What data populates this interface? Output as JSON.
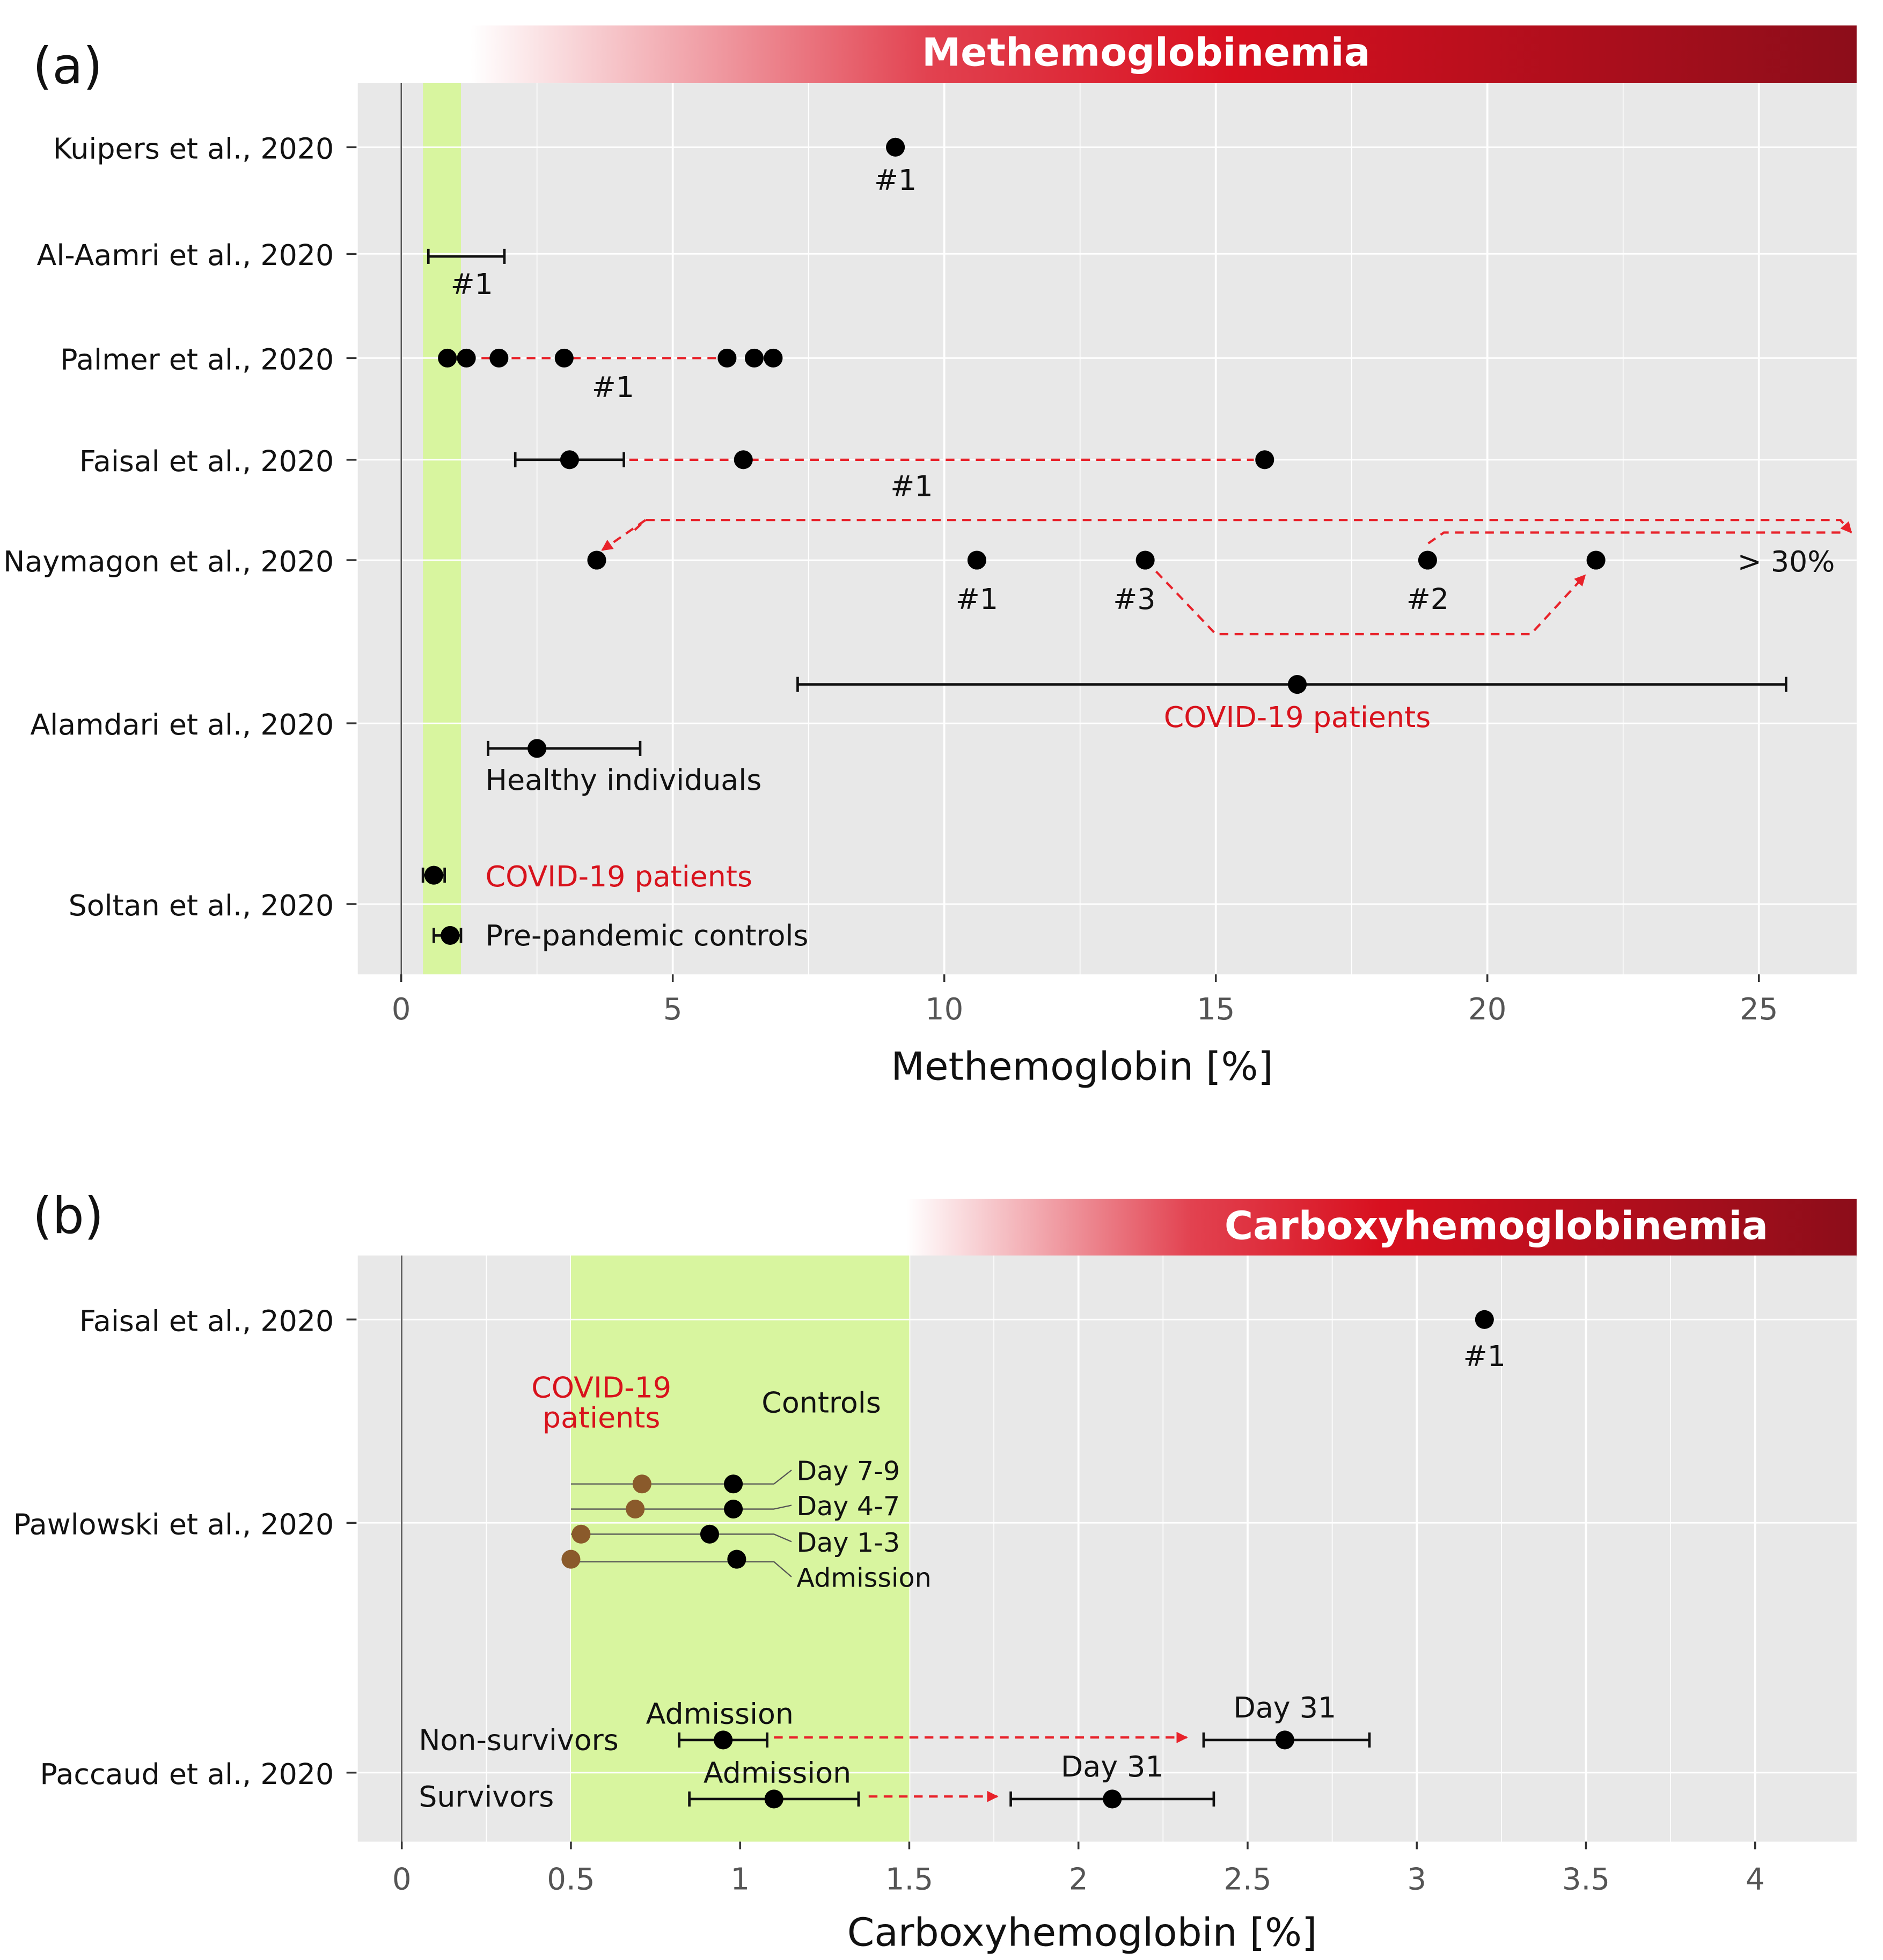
{
  "colors": {
    "panel_bg": "#e8e8e8",
    "grid": "#ffffff",
    "normal_band": "#d8f59f",
    "point": "#000000",
    "point_brown": "#8a5a2b",
    "arrow_red": "#e8222a",
    "text": "#111111",
    "text_red": "#d8121c",
    "banner_dark": "#8c0d1a",
    "banner_mid": "#d8101f"
  },
  "chart_data": [
    {
      "type": "scatter",
      "panel_label": "(a)",
      "banner": "Methemoglobinemia",
      "xlabel": "Methemoglobin [%]",
      "xlim": [
        -0.8,
        26.8
      ],
      "xticks": [
        0,
        5,
        10,
        15,
        20,
        25
      ],
      "normal_range": [
        0.4,
        1.1
      ],
      "grid": "major lines at ticks, minor between",
      "studies": [
        {
          "label": "Kuipers et al., 2020",
          "y": 117
        },
        {
          "label": "Al-Aamri et al., 2020",
          "y": 202
        },
        {
          "label": "Palmer et al., 2020",
          "y": 285
        },
        {
          "label": "Faisal et al., 2020",
          "y": 366
        },
        {
          "label": "Naymagon et al., 2020",
          "y": 446
        },
        {
          "label": "Alamdari et al., 2020",
          "y": 576
        },
        {
          "label": "Soltan et al., 2020",
          "y": 720
        }
      ],
      "points": [
        {
          "study": "Kuipers et al., 2020",
          "x": 9.1,
          "y": 117
        },
        {
          "study": "Palmer et al., 2020",
          "x": 0.85,
          "y": 285
        },
        {
          "study": "Palmer et al., 2020",
          "x": 1.2,
          "y": 285
        },
        {
          "study": "Palmer et al., 2020",
          "x": 1.8,
          "y": 285
        },
        {
          "study": "Palmer et al., 2020",
          "x": 3.0,
          "y": 285
        },
        {
          "study": "Palmer et al., 2020",
          "x": 6.0,
          "y": 285
        },
        {
          "study": "Palmer et al., 2020",
          "x": 6.5,
          "y": 285
        },
        {
          "study": "Palmer et al., 2020",
          "x": 6.85,
          "y": 285
        },
        {
          "study": "Faisal et al., 2020",
          "x": 3.1,
          "y": 366
        },
        {
          "study": "Faisal et al., 2020",
          "x": 6.3,
          "y": 366
        },
        {
          "study": "Faisal et al., 2020",
          "x": 15.9,
          "y": 366
        },
        {
          "study": "Naymagon et al., 2020",
          "x": 3.6,
          "y": 446
        },
        {
          "study": "Naymagon et al., 2020",
          "x": 10.6,
          "y": 446
        },
        {
          "study": "Naymagon et al., 2020",
          "x": 13.7,
          "y": 446
        },
        {
          "study": "Naymagon et al., 2020",
          "x": 18.9,
          "y": 446
        },
        {
          "study": "Naymagon et al., 2020",
          "x": 22.0,
          "y": 446
        },
        {
          "study": "Alamdari et al., 2020 (COVID-19 patients)",
          "x": 16.5,
          "y": 545
        },
        {
          "study": "Alamdari et al., 2020 (Healthy individuals)",
          "x": 2.5,
          "y": 596
        },
        {
          "study": "Soltan et al., 2020 (COVID-19 patients)",
          "x": 0.6,
          "y": 697
        },
        {
          "study": "Soltan et al., 2020 (Pre-pandemic controls)",
          "x": 0.9,
          "y": 745
        }
      ],
      "ranges": [
        {
          "study": "Al-Aamri et al., 2020",
          "low": 0.5,
          "high": 1.9,
          "y": 204
        },
        {
          "study": "Faisal et al., 2020",
          "low": 2.1,
          "high": 4.1,
          "y": 366
        },
        {
          "study": "Alamdari et al., 2020 (COVID-19 patients)",
          "low": 7.3,
          "high": 25.5,
          "y": 545
        },
        {
          "study": "Alamdari et al., 2020 (Healthy individuals)",
          "low": 1.6,
          "high": 4.4,
          "y": 596
        },
        {
          "study": "Soltan et al., 2020 (COVID-19 patients)",
          "low": 0.4,
          "high": 0.8,
          "y": 697
        },
        {
          "study": "Soltan et al., 2020 (Pre-pandemic controls)",
          "low": 0.6,
          "high": 1.1,
          "y": 745
        }
      ],
      "arrows": [
        {
          "path": [
            [
              1.2,
              285
            ],
            [
              6.0,
              285
            ]
          ],
          "head": false
        },
        {
          "path": [
            [
              4.2,
              366
            ],
            [
              15.7,
              366
            ]
          ],
          "head": false
        },
        {
          "path": [
            [
              4.3,
              422
            ],
            [
              4.5,
              414
            ],
            [
              26.5,
              414
            ],
            [
              26.7,
              424
            ]
          ],
          "head": true
        },
        {
          "path": [
            [
              26.5,
              424
            ],
            [
              19.2,
              424
            ],
            [
              18.9,
              433
            ]
          ],
          "head": false
        },
        {
          "path": [
            [
              4.5,
              414
            ],
            [
              3.7,
              438
            ]
          ],
          "head": true
        },
        {
          "path": [
            [
              13.9,
              455
            ],
            [
              15.0,
              505
            ],
            [
              20.8,
              505
            ],
            [
              21.8,
              458
            ]
          ],
          "head": true
        }
      ],
      "annotations": [
        {
          "text": "#1",
          "x": 9.1,
          "y": 143,
          "color": "text",
          "anchor": "middle"
        },
        {
          "text": "#1",
          "x": 1.3,
          "y": 226,
          "color": "text",
          "anchor": "middle"
        },
        {
          "text": "#1",
          "x": 3.9,
          "y": 308,
          "color": "text",
          "anchor": "middle"
        },
        {
          "text": "#1",
          "x": 9.4,
          "y": 387,
          "color": "text",
          "anchor": "middle"
        },
        {
          "text": "#1",
          "x": 10.6,
          "y": 477,
          "color": "text",
          "anchor": "middle"
        },
        {
          "text": "#3",
          "x": 13.5,
          "y": 477,
          "color": "text",
          "anchor": "middle"
        },
        {
          "text": "#2",
          "x": 18.9,
          "y": 477,
          "color": "text",
          "anchor": "middle"
        },
        {
          "text": "> 30%",
          "x": 26.4,
          "y": 447,
          "color": "text",
          "anchor": "end"
        },
        {
          "text": "COVID-19 patients",
          "x": 16.5,
          "y": 571,
          "color": "text_red",
          "anchor": "middle"
        },
        {
          "text": "Healthy individuals",
          "x": 1.55,
          "y": 621,
          "color": "text",
          "anchor": "start"
        },
        {
          "text": "COVID-19 patients",
          "x": 1.55,
          "y": 698,
          "color": "text_red",
          "anchor": "start"
        },
        {
          "text": "Pre-pandemic controls",
          "x": 1.55,
          "y": 745,
          "color": "text",
          "anchor": "start"
        }
      ]
    },
    {
      "type": "scatter",
      "panel_label": "(b)",
      "banner": "Carboxyhemoglobinemia",
      "xlabel": "Carboxyhemoglobin [%]",
      "xlim": [
        -0.13,
        4.3
      ],
      "xticks": [
        0,
        0.5,
        1,
        1.5,
        2,
        2.5,
        3,
        3.5,
        4
      ],
      "xtick_labels": [
        "0",
        "0.5",
        "1",
        "1.5",
        "2",
        "2.5",
        "3",
        "3.5",
        "4"
      ],
      "normal_range": [
        0.5,
        1.5
      ],
      "grid": "major lines at ticks, minor between",
      "studies": [
        {
          "label": "Faisal et al., 2020",
          "y": 1051
        },
        {
          "label": "Pawlowski et al., 2020",
          "y": 1213
        },
        {
          "label": "Paccaud et al., 2020",
          "y": 1412
        }
      ],
      "points": [
        {
          "study": "Faisal et al., 2020",
          "x": 3.2,
          "y": 1051,
          "group": "patient"
        },
        {
          "study": "Pawlowski et al., 2020 Day 7-9 COVID-19",
          "x": 0.71,
          "y": 1182,
          "group": "covid"
        },
        {
          "study": "Pawlowski et al., 2020 Day 7-9 Controls",
          "x": 0.98,
          "y": 1182,
          "group": "control"
        },
        {
          "study": "Pawlowski et al., 2020 Day 4-7 COVID-19",
          "x": 0.69,
          "y": 1202,
          "group": "covid"
        },
        {
          "study": "Pawlowski et al., 2020 Day 4-7 Controls",
          "x": 0.98,
          "y": 1202,
          "group": "control"
        },
        {
          "study": "Pawlowski et al., 2020 Day 1-3 COVID-19",
          "x": 0.53,
          "y": 1222,
          "group": "covid"
        },
        {
          "study": "Pawlowski et al., 2020 Day 1-3 Controls",
          "x": 0.91,
          "y": 1222,
          "group": "control"
        },
        {
          "study": "Pawlowski et al., 2020 Admission COVID-19",
          "x": 0.5,
          "y": 1242,
          "group": "covid"
        },
        {
          "study": "Pawlowski et al., 2020 Admission Controls",
          "x": 0.99,
          "y": 1242,
          "group": "control"
        },
        {
          "study": "Paccaud et al., 2020 Non-survivors Admission",
          "x": 0.95,
          "y": 1386,
          "group": "patient"
        },
        {
          "study": "Paccaud et al., 2020 Non-survivors Day 31",
          "x": 2.61,
          "y": 1386,
          "group": "patient"
        },
        {
          "study": "Paccaud et al., 2020 Survivors Admission",
          "x": 1.1,
          "y": 1433,
          "group": "patient"
        },
        {
          "study": "Paccaud et al., 2020 Survivors Day 31",
          "x": 2.1,
          "y": 1433,
          "group": "patient"
        }
      ],
      "ranges": [
        {
          "study": "Paccaud Non-survivors Admission",
          "low": 0.82,
          "high": 1.08,
          "y": 1386
        },
        {
          "study": "Paccaud Non-survivors Day 31",
          "low": 2.37,
          "high": 2.86,
          "y": 1386
        },
        {
          "study": "Paccaud Survivors Admission",
          "low": 0.85,
          "high": 1.35,
          "y": 1433
        },
        {
          "study": "Paccaud Survivors Day 31",
          "low": 1.8,
          "high": 2.4,
          "y": 1433
        }
      ],
      "connectors": [
        {
          "label": "Day 7-9",
          "y": 1182,
          "x_from": 0.5,
          "x_to": 1.1,
          "label_y": 1171
        },
        {
          "label": "Day 4-7",
          "y": 1202,
          "x_from": 0.5,
          "x_to": 1.1,
          "label_y": 1199
        },
        {
          "label": "Day 1-3",
          "y": 1222,
          "x_from": 0.5,
          "x_to": 1.1,
          "label_y": 1228
        },
        {
          "label": "Admission",
          "y": 1244,
          "x_from": 0.5,
          "x_to": 1.1,
          "label_y": 1256
        }
      ],
      "arrows": [
        {
          "path": [
            [
              1.1,
              1384
            ],
            [
              2.32,
              1384
            ]
          ],
          "head": true
        },
        {
          "path": [
            [
              1.38,
              1431
            ],
            [
              1.76,
              1431
            ]
          ],
          "head": true
        }
      ],
      "annotations": [
        {
          "text": "#1",
          "x": 3.2,
          "y": 1080,
          "color": "text",
          "anchor": "middle"
        },
        {
          "text": "COVID-19",
          "x": 0.59,
          "y": 1105,
          "color": "text_red",
          "anchor": "middle"
        },
        {
          "text": "patients",
          "x": 0.59,
          "y": 1129,
          "color": "text_red",
          "anchor": "middle"
        },
        {
          "text": "Controls",
          "x": 1.24,
          "y": 1117,
          "color": "text",
          "anchor": "middle"
        },
        {
          "text": "Non-survivors",
          "x": 0.05,
          "y": 1386,
          "color": "text",
          "anchor": "start"
        },
        {
          "text": "Survivors",
          "x": 0.05,
          "y": 1431,
          "color": "text",
          "anchor": "start"
        },
        {
          "text": "Admission",
          "x": 0.94,
          "y": 1365,
          "color": "text",
          "anchor": "middle"
        },
        {
          "text": "Day 31",
          "x": 2.61,
          "y": 1360,
          "color": "text",
          "anchor": "middle"
        },
        {
          "text": "Admission",
          "x": 1.11,
          "y": 1412,
          "color": "text",
          "anchor": "middle"
        },
        {
          "text": "Day 31",
          "x": 2.1,
          "y": 1407,
          "color": "text",
          "anchor": "middle"
        }
      ]
    }
  ]
}
